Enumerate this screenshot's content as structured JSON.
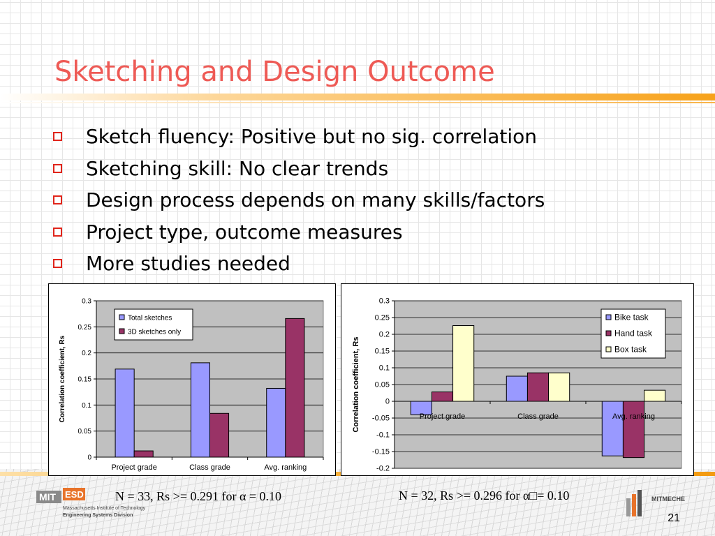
{
  "title": "Sketching and Design Outcome",
  "bullets": [
    "Sketch fluency: Positive but no sig. correlation",
    "Sketching skill: No clear trends",
    "Design process depends on many skills/factors",
    "Project type, outcome measures",
    "More studies needed"
  ],
  "notes": {
    "left": "N = 33, Rs >= 0.291 for α = 0.10",
    "right": "N = 32, Rs >= 0.296 for α□= 0.10"
  },
  "page_number": "21",
  "logos": {
    "esd_mit": "MIT",
    "esd_text": "ESD",
    "esd_line1": "Massachusetts Institute of Technology",
    "esd_line2": "Engineering Systems Division",
    "mitmeche": "MITMECHE"
  },
  "colors": {
    "title": "#ee5a55",
    "bullet_box": "#e0251b",
    "series_blue": "#9999ff",
    "series_maroon": "#993366",
    "series_cream": "#ffffcc",
    "plot_bg": "#c0c0c0"
  },
  "chart_data": [
    {
      "type": "bar",
      "categories": [
        "Project grade",
        "Class grade",
        "Avg. ranking"
      ],
      "series": [
        {
          "name": "Total sketches",
          "values": [
            0.169,
            0.181,
            0.132
          ],
          "color": "#9999ff"
        },
        {
          "name": "3D sketches only",
          "values": [
            0.012,
            0.084,
            0.266
          ],
          "color": "#993366"
        }
      ],
      "xlabel": "",
      "ylabel": "Correlation coefficient, Rs",
      "ylim": [
        0,
        0.3
      ],
      "yticks": [
        0,
        0.05,
        0.1,
        0.15,
        0.2,
        0.25,
        0.3
      ],
      "ytick_labels": [
        "0",
        "0.05",
        "0.1",
        "0.15",
        "0.2",
        "0.25",
        "0.3"
      ],
      "grid": true,
      "legend": "top-left"
    },
    {
      "type": "bar",
      "categories": [
        "Project grade",
        "Class grade",
        "Avg. ranking"
      ],
      "series": [
        {
          "name": "Bike task",
          "values": [
            -0.04,
            0.075,
            -0.163
          ],
          "color": "#9999ff"
        },
        {
          "name": "Hand task",
          "values": [
            0.028,
            0.085,
            -0.168
          ],
          "color": "#993366"
        },
        {
          "name": "Box task",
          "values": [
            0.226,
            0.085,
            0.033
          ],
          "color": "#ffffcc"
        }
      ],
      "xlabel": "",
      "ylabel": "Correlation coefficient, Rs",
      "ylim": [
        -0.2,
        0.3
      ],
      "yticks": [
        -0.2,
        -0.15,
        -0.1,
        -0.05,
        0,
        0.05,
        0.1,
        0.15,
        0.2,
        0.25,
        0.3
      ],
      "ytick_labels": [
        "-0.2",
        "-0.15",
        "-0.1",
        "-0.05",
        "0",
        "0.05",
        "0.1",
        "0.15",
        "0.2",
        "0.25",
        "0.3"
      ],
      "grid": true,
      "legend": "top-right"
    }
  ]
}
